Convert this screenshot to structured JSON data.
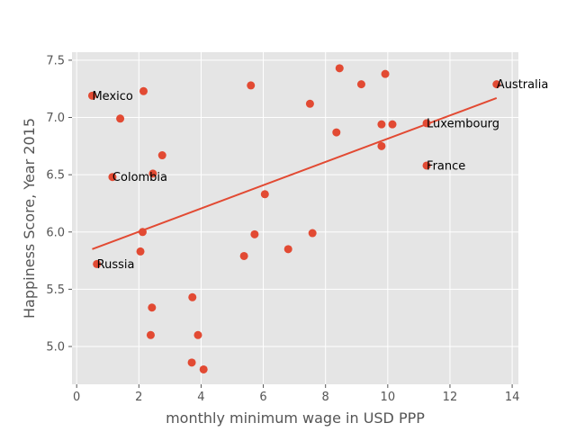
{
  "chart_data": {
    "type": "scatter",
    "title": "",
    "xlabel": "monthly minimum wage in USD PPP",
    "ylabel": "Happiness Score, Year 2015",
    "xlim": [
      -0.15,
      14.2
    ],
    "ylim": [
      4.67,
      7.57
    ],
    "xticks": [
      0,
      2,
      4,
      6,
      8,
      10,
      12,
      14
    ],
    "yticks": [
      5.0,
      5.5,
      6.0,
      6.5,
      7.0,
      7.5
    ],
    "xtick_labels": [
      "0",
      "2",
      "4",
      "6",
      "8",
      "10",
      "12",
      "14"
    ],
    "ytick_labels": [
      "5.0",
      "5.5",
      "6.0",
      "6.5",
      "7.0",
      "7.5"
    ],
    "grid": true,
    "colors": {
      "points": "#E24A33",
      "trend": "#E24A33",
      "background": "#E5E5E5",
      "grid": "#FFFFFF"
    },
    "points": [
      {
        "x": 0.5,
        "y": 7.19
      },
      {
        "x": 0.65,
        "y": 5.72
      },
      {
        "x": 1.15,
        "y": 6.48
      },
      {
        "x": 1.4,
        "y": 6.99
      },
      {
        "x": 2.05,
        "y": 5.83
      },
      {
        "x": 2.12,
        "y": 6.0
      },
      {
        "x": 2.15,
        "y": 7.23
      },
      {
        "x": 2.38,
        "y": 5.1
      },
      {
        "x": 2.42,
        "y": 5.34
      },
      {
        "x": 2.45,
        "y": 6.51
      },
      {
        "x": 2.75,
        "y": 6.67
      },
      {
        "x": 3.7,
        "y": 4.86
      },
      {
        "x": 3.72,
        "y": 5.43
      },
      {
        "x": 3.9,
        "y": 5.1
      },
      {
        "x": 4.08,
        "y": 4.8
      },
      {
        "x": 5.38,
        "y": 5.79
      },
      {
        "x": 5.6,
        "y": 7.28
      },
      {
        "x": 5.72,
        "y": 5.98
      },
      {
        "x": 6.05,
        "y": 6.33
      },
      {
        "x": 6.8,
        "y": 5.85
      },
      {
        "x": 7.5,
        "y": 7.12
      },
      {
        "x": 7.58,
        "y": 5.99
      },
      {
        "x": 8.35,
        "y": 6.87
      },
      {
        "x": 8.45,
        "y": 7.43
      },
      {
        "x": 9.15,
        "y": 7.29
      },
      {
        "x": 9.8,
        "y": 6.94
      },
      {
        "x": 9.8,
        "y": 6.75
      },
      {
        "x": 9.92,
        "y": 7.38
      },
      {
        "x": 10.15,
        "y": 6.94
      },
      {
        "x": 11.25,
        "y": 6.95
      },
      {
        "x": 11.25,
        "y": 6.58
      },
      {
        "x": 13.5,
        "y": 7.29
      }
    ],
    "trendline": {
      "x": [
        0.5,
        13.5
      ],
      "y": [
        5.85,
        7.17
      ]
    },
    "annotations": [
      {
        "text": "Mexico",
        "x": 0.5,
        "y": 7.19
      },
      {
        "text": "Russia",
        "x": 0.65,
        "y": 5.72
      },
      {
        "text": "Colombia",
        "x": 1.15,
        "y": 6.48
      },
      {
        "text": "Luxembourg",
        "x": 11.25,
        "y": 6.95
      },
      {
        "text": "France",
        "x": 11.25,
        "y": 6.58
      },
      {
        "text": "Australia",
        "x": 13.5,
        "y": 7.29
      }
    ]
  }
}
